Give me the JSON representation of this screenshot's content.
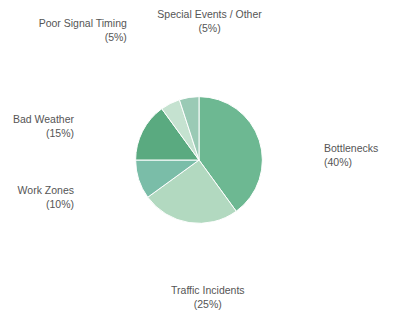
{
  "chart_data": {
    "type": "pie",
    "categories": [
      "Bottlenecks",
      "Traffic Incidents",
      "Work Zones",
      "Bad Weather",
      "Poor Signal Timing",
      "Special Events / Other"
    ],
    "values": [
      40,
      25,
      10,
      15,
      5,
      5
    ],
    "value_labels": [
      "(40%)",
      "(25%)",
      "(10%)",
      "(15%)",
      "(5%)",
      "(5%)"
    ],
    "colors": [
      "#6db892",
      "#b2d9c0",
      "#7abda8",
      "#5aaa80",
      "#c5e2d0",
      "#9acab5"
    ],
    "data_labels": true
  }
}
